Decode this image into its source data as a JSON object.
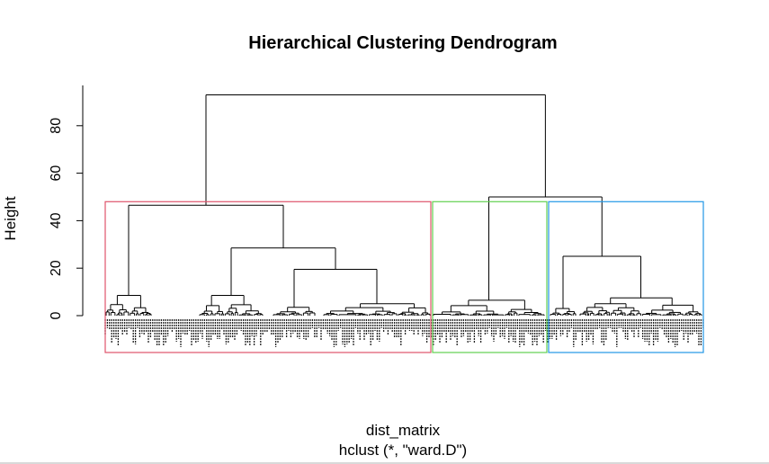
{
  "chart_data": {
    "type": "dendrogram",
    "title": "Hierarchical Clustering Dendrogram",
    "xlabel": "dist_matrix",
    "sublabel": "hclust (*, \"ward.D\")",
    "ylabel": "Height",
    "ylim": [
      0,
      95
    ],
    "y_ticks": [
      0,
      20,
      40,
      60,
      80
    ],
    "y_tick_labels": [
      "0",
      "20",
      "40",
      "60",
      "80"
    ],
    "n_clusters": 3,
    "cut_height": 48,
    "merges": [
      {
        "name": "root",
        "height": 93,
        "children": [
          "cluster-1",
          "right-group"
        ]
      },
      {
        "name": "right-group",
        "height": 50,
        "children": [
          "cluster-2",
          "cluster-3"
        ]
      },
      {
        "name": "cluster-1",
        "height": 46.5,
        "children": [
          "c1-left",
          "c1-right"
        ]
      },
      {
        "name": "c1-right",
        "height": 28.5,
        "children": [
          "c1-mid",
          "c1-far"
        ]
      },
      {
        "name": "c1-far",
        "height": 19.5,
        "children": [
          "c1-far-a",
          "c1-far-b"
        ]
      },
      {
        "name": "cluster-3",
        "height": 25,
        "children": [
          "c3-left",
          "c3-right"
        ]
      },
      {
        "name": "c1-left",
        "height": 8.5
      },
      {
        "name": "c1-mid",
        "height": 8.5
      },
      {
        "name": "c1-far-a",
        "height": 3.5
      },
      {
        "name": "c1-far-b",
        "height": 5
      },
      {
        "name": "cluster-2",
        "height": 6.5
      },
      {
        "name": "c3-left",
        "height": 3
      },
      {
        "name": "c3-right",
        "height": 7.5
      }
    ],
    "cluster_boxes": [
      {
        "name": "cluster-1",
        "color": "#DF536B"
      },
      {
        "name": "cluster-2",
        "color": "#61D04F"
      },
      {
        "name": "cluster-3",
        "color": "#2297E6"
      }
    ],
    "colors": {
      "lines": "#000000",
      "axis": "#000000"
    }
  }
}
